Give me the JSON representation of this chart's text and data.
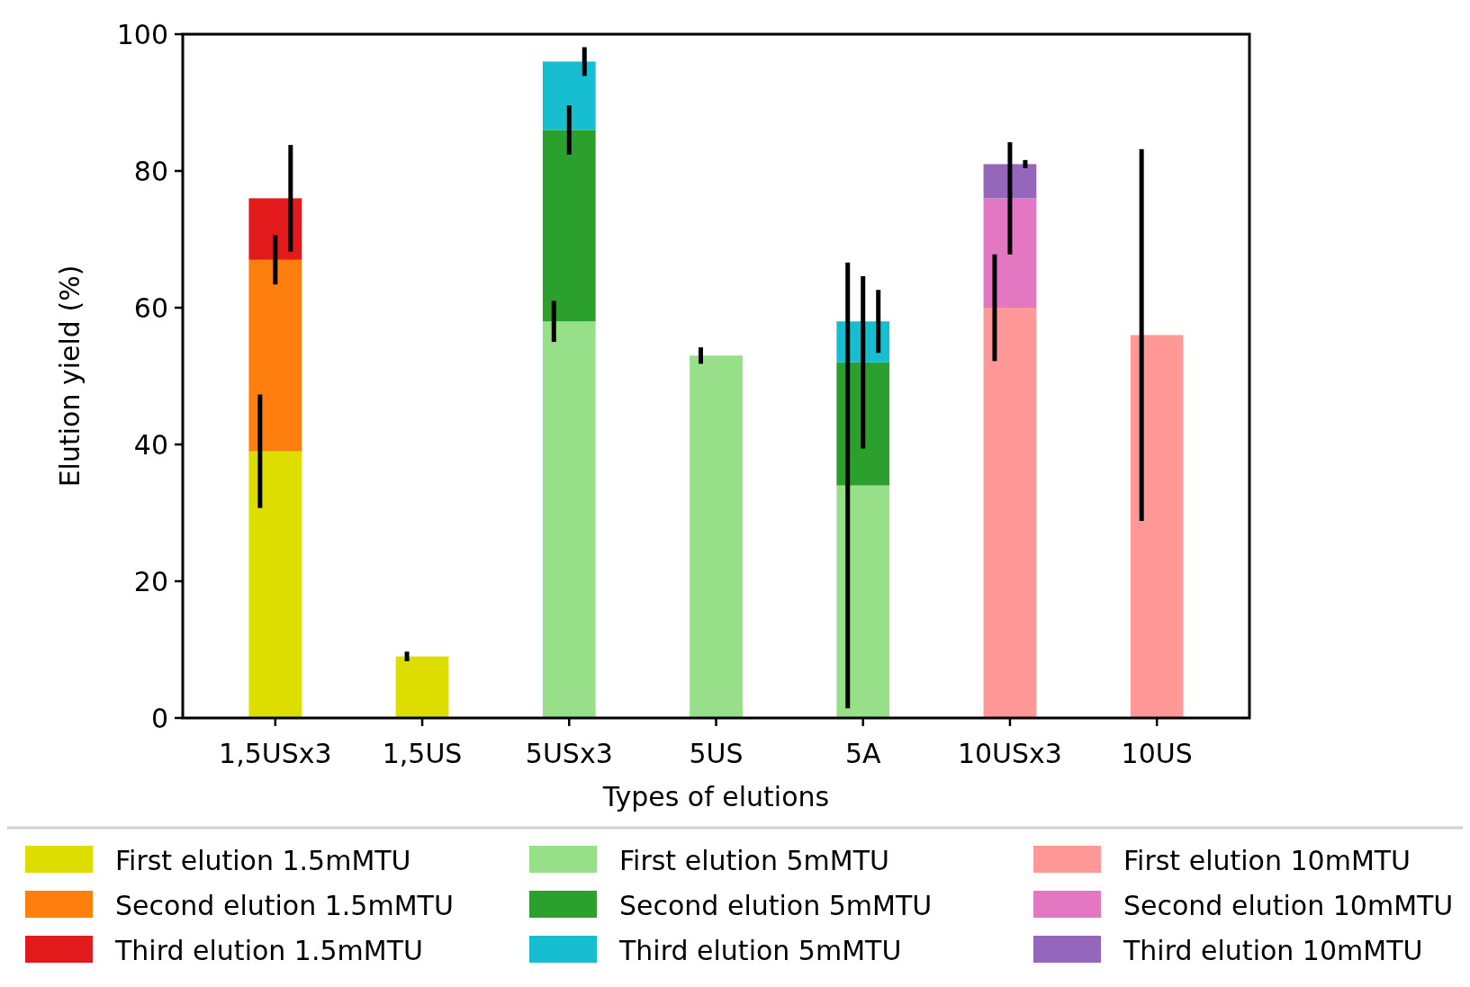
{
  "chart_data": {
    "type": "bar",
    "stacked": true,
    "xlabel": "Types of elutions",
    "ylabel": "Elution yield (%)",
    "categories": [
      "1,5USx3",
      "1,5US",
      "5USx3",
      "5US",
      "5A",
      "10USx3",
      "10US"
    ],
    "ylim": [
      0,
      100
    ],
    "yticks": [
      0,
      20,
      40,
      60,
      80,
      100
    ],
    "grid": false,
    "legend": "bottom",
    "series": [
      {
        "name": "First elution 1.5mMTU",
        "color": "#dddd00",
        "values": [
          39,
          9,
          null,
          null,
          null,
          null,
          null
        ],
        "errors": [
          8.3,
          0.7,
          null,
          null,
          null,
          null,
          null
        ]
      },
      {
        "name": "Second elution 1.5mMTU",
        "color": "#ff7f0e",
        "values": [
          28,
          null,
          null,
          null,
          null,
          null,
          null
        ],
        "errors": [
          3.6,
          null,
          null,
          null,
          null,
          null,
          null
        ]
      },
      {
        "name": "Third elution 1.5mMTU",
        "color": "#e31a1c",
        "values": [
          9,
          null,
          null,
          null,
          null,
          null,
          null
        ],
        "errors": [
          7.8,
          null,
          null,
          null,
          null,
          null,
          null
        ]
      },
      {
        "name": "First elution 5mMTU",
        "color": "#98df8a",
        "values": [
          null,
          null,
          58,
          53,
          34,
          null,
          null
        ],
        "errors": [
          null,
          null,
          3,
          1.2,
          32.6,
          null,
          null
        ]
      },
      {
        "name": "Second elution 5mMTU",
        "color": "#2ca02c",
        "values": [
          null,
          null,
          28,
          null,
          18,
          null,
          null
        ],
        "errors": [
          null,
          null,
          3.6,
          null,
          12.6,
          null,
          null
        ]
      },
      {
        "name": "Third elution 5mMTU",
        "color": "#17becf",
        "values": [
          null,
          null,
          10,
          null,
          6,
          null,
          null
        ],
        "errors": [
          null,
          null,
          2.1,
          null,
          4.6,
          null,
          null
        ]
      },
      {
        "name": "First elution 10mMTU",
        "color": "#ff9896",
        "values": [
          null,
          null,
          null,
          null,
          null,
          60,
          56
        ],
        "errors": [
          null,
          null,
          null,
          null,
          null,
          7.8,
          27.2
        ]
      },
      {
        "name": "Second elution 10mMTU",
        "color": "#e377c2",
        "values": [
          null,
          null,
          null,
          null,
          null,
          16,
          null
        ],
        "errors": [
          null,
          null,
          null,
          null,
          null,
          8.2,
          null
        ]
      },
      {
        "name": "Third elution 10mMTU",
        "color": "#9467bd",
        "values": [
          null,
          null,
          null,
          null,
          null,
          5,
          null
        ],
        "errors": [
          null,
          null,
          null,
          null,
          null,
          0.6,
          null
        ]
      }
    ]
  }
}
